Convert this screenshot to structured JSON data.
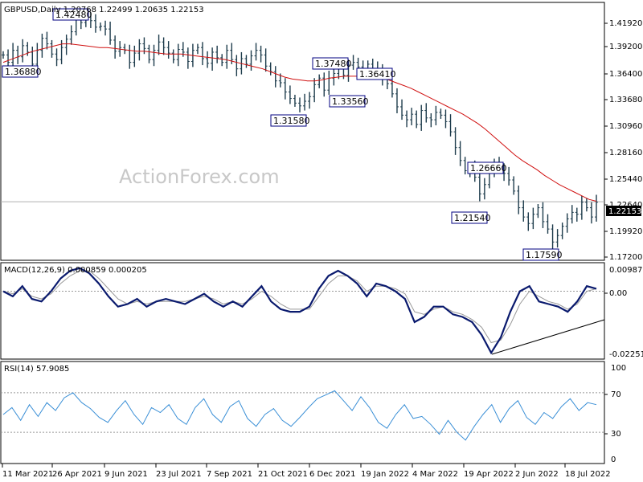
{
  "chart_data": [
    {
      "type": "ohlc",
      "header": "GBPUSD,Daily  1.20768 1.22499 1.20635 1.22153",
      "watermark": "ActionForex.com",
      "ylim": [
        1.16,
        1.435
      ],
      "y_ticks": [
        "1.41920",
        "1.39200",
        "1.36400",
        "1.33680",
        "1.30960",
        "1.28160",
        "1.25440",
        "1.22640",
        "1.19920",
        "1.17200"
      ],
      "last_price": "1.22153",
      "annotations": [
        "1.42480",
        "1.36880",
        "1.37480",
        "1.36410",
        "1.33560",
        "1.31580",
        "1.26660",
        "1.21540",
        "1.17590"
      ],
      "series": [
        {
          "name": "close",
          "values": [
            1.38,
            1.372,
            1.385,
            1.378,
            1.39,
            1.383,
            1.37,
            1.385,
            1.398,
            1.392,
            1.381,
            1.375,
            1.388,
            1.397,
            1.405,
            1.418,
            1.415,
            1.421,
            1.417,
            1.41,
            1.411,
            1.408,
            1.396,
            1.384,
            1.388,
            1.385,
            1.372,
            1.382,
            1.392,
            1.387,
            1.375,
            1.385,
            1.394,
            1.388,
            1.382,
            1.375,
            1.386,
            1.383,
            1.373,
            1.385,
            1.388,
            1.376,
            1.371,
            1.383,
            1.377,
            1.372,
            1.385,
            1.375,
            1.365,
            1.376,
            1.37,
            1.379,
            1.385,
            1.38,
            1.368,
            1.362,
            1.352,
            1.35,
            1.34,
            1.333,
            1.328,
            1.325,
            1.33,
            1.335,
            1.348,
            1.355,
            1.342,
            1.355,
            1.36,
            1.366,
            1.358,
            1.369,
            1.372,
            1.367,
            1.361,
            1.37,
            1.362,
            1.365,
            1.355,
            1.349,
            1.338,
            1.324,
            1.315,
            1.31,
            1.316,
            1.305,
            1.32,
            1.312,
            1.31,
            1.318,
            1.315,
            1.308,
            1.297,
            1.28,
            1.266,
            1.255,
            1.258,
            1.248,
            1.23,
            1.24,
            1.255,
            1.262,
            1.258,
            1.252,
            1.245,
            1.233,
            1.215,
            1.205,
            1.198,
            1.208,
            1.215,
            1.2,
            1.192,
            1.178,
            1.185,
            1.195,
            1.203,
            1.21,
            1.208,
            1.221,
            1.215,
            1.205,
            1.221
          ]
        },
        {
          "name": "moving_average",
          "values": [
            1.372,
            1.375,
            1.378,
            1.381,
            1.384,
            1.386,
            1.388,
            1.39,
            1.392,
            1.392,
            1.391,
            1.39,
            1.389,
            1.388,
            1.388,
            1.387,
            1.386,
            1.385,
            1.384,
            1.384,
            1.383,
            1.382,
            1.381,
            1.381,
            1.381,
            1.38,
            1.379,
            1.378,
            1.377,
            1.376,
            1.375,
            1.373,
            1.371,
            1.369,
            1.367,
            1.365,
            1.362,
            1.359,
            1.356,
            1.354,
            1.353,
            1.352,
            1.352,
            1.353,
            1.355,
            1.356,
            1.357,
            1.357,
            1.357,
            1.357,
            1.356,
            1.355,
            1.353,
            1.35,
            1.347,
            1.344,
            1.34,
            1.336,
            1.332,
            1.328,
            1.324,
            1.32,
            1.316,
            1.311,
            1.306,
            1.3,
            1.293,
            1.286,
            1.279,
            1.272,
            1.266,
            1.261,
            1.256,
            1.25,
            1.245,
            1.24,
            1.236,
            1.232,
            1.228,
            1.224,
            1.222
          ]
        }
      ]
    },
    {
      "type": "line",
      "header": "MACD(12,26,9) 0.000859 0.000205",
      "ylim": [
        -0.0258,
        0.0105
      ],
      "y_ticks": [
        "0.009872",
        "0.00",
        "-0.022516"
      ],
      "series": [
        {
          "name": "MACD",
          "values": [
            0.0,
            -0.002,
            0.002,
            -0.003,
            -0.004,
            0.0,
            0.005,
            0.008,
            0.009,
            0.007,
            0.003,
            -0.002,
            -0.006,
            -0.005,
            -0.003,
            -0.006,
            -0.004,
            -0.003,
            -0.004,
            -0.005,
            -0.003,
            -0.001,
            -0.004,
            -0.006,
            -0.004,
            -0.006,
            -0.002,
            0.002,
            -0.004,
            -0.007,
            -0.008,
            -0.008,
            -0.006,
            0.001,
            0.006,
            0.008,
            0.006,
            0.003,
            -0.002,
            0.003,
            0.002,
            0.0,
            -0.003,
            -0.012,
            -0.01,
            -0.006,
            -0.006,
            -0.009,
            -0.01,
            -0.012,
            -0.017,
            -0.024,
            -0.018,
            -0.008,
            0.0,
            0.002,
            -0.004,
            -0.005,
            -0.006,
            -0.008,
            -0.004,
            0.002,
            0.001
          ]
        },
        {
          "name": "Signal",
          "values": [
            0.0,
            -0.001,
            0.001,
            -0.002,
            -0.003,
            -0.001,
            0.003,
            0.006,
            0.008,
            0.008,
            0.005,
            0.001,
            -0.003,
            -0.005,
            -0.004,
            -0.005,
            -0.004,
            -0.004,
            -0.004,
            -0.004,
            -0.003,
            -0.002,
            -0.003,
            -0.005,
            -0.004,
            -0.005,
            -0.003,
            0.0,
            -0.002,
            -0.005,
            -0.007,
            -0.007,
            -0.007,
            -0.002,
            0.003,
            0.006,
            0.006,
            0.004,
            0.0,
            0.002,
            0.002,
            0.001,
            -0.001,
            -0.008,
            -0.009,
            -0.007,
            -0.006,
            -0.008,
            -0.009,
            -0.011,
            -0.014,
            -0.02,
            -0.019,
            -0.013,
            -0.005,
            0.0,
            -0.002,
            -0.004,
            -0.005,
            -0.007,
            -0.005,
            0.0,
            0.001
          ]
        }
      ]
    },
    {
      "type": "line",
      "header": "RSI(14) 57.9085",
      "ylim": [
        0,
        100
      ],
      "y_ticks": [
        "100",
        "70",
        "30",
        "0"
      ],
      "x_ticks": [
        "11 Mar 2021",
        "26 Apr 2021",
        "9 Jun 2021",
        "23 Jul 2021",
        "7 Sep 2021",
        "21 Oct 2021",
        "6 Dec 2021",
        "19 Jan 2022",
        "4 Mar 2022",
        "19 Apr 2022",
        "2 Jun 2022",
        "18 Jul 2022"
      ],
      "series": [
        {
          "name": "RSI",
          "values": [
            48,
            55,
            42,
            58,
            46,
            60,
            52,
            65,
            70,
            60,
            54,
            45,
            40,
            52,
            62,
            48,
            38,
            55,
            50,
            58,
            44,
            38,
            55,
            64,
            48,
            40,
            56,
            62,
            44,
            36,
            48,
            54,
            42,
            36,
            45,
            55,
            64,
            68,
            72,
            62,
            52,
            66,
            55,
            40,
            34,
            48,
            58,
            44,
            46,
            38,
            28,
            42,
            30,
            22,
            36,
            48,
            58,
            40,
            54,
            62,
            45,
            38,
            50,
            44,
            56,
            64,
            52,
            60,
            58
          ]
        }
      ]
    }
  ]
}
